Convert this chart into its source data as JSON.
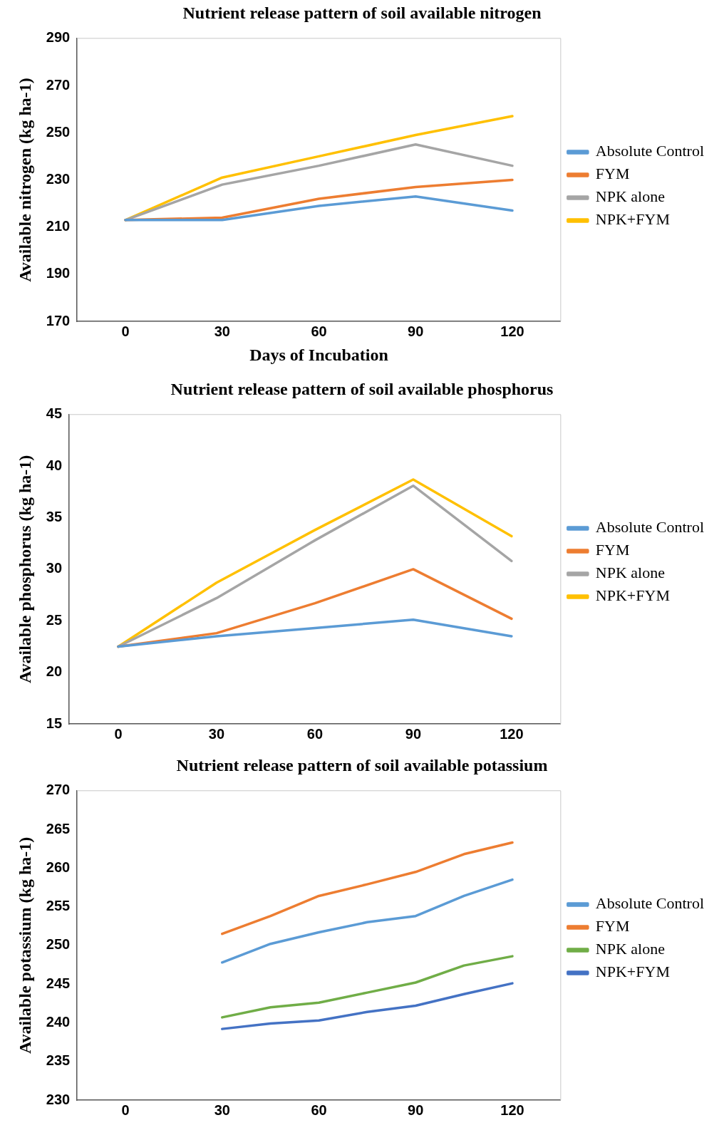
{
  "chart_data": [
    {
      "type": "line",
      "title": "Nutrient release pattern of soil available nitrogen",
      "xlabel": "Days of Incubation",
      "ylabel": "Available nitrogen (kg ha-1)",
      "x": [
        0,
        30,
        60,
        90,
        120
      ],
      "xlim": [
        -15,
        135
      ],
      "xticks": [
        0,
        30,
        60,
        90,
        120
      ],
      "ylim": [
        170,
        290
      ],
      "yticks": [
        170,
        190,
        210,
        230,
        250,
        270,
        290
      ],
      "grid": false,
      "legend": "right",
      "marker": "none",
      "series": [
        {
          "name": "Absolute Control",
          "color": "#5b9bd5",
          "values": [
            213,
            213,
            219,
            223,
            217
          ]
        },
        {
          "name": "FYM",
          "color": "#ed7d31",
          "values": [
            213,
            214,
            222,
            227,
            230
          ]
        },
        {
          "name": "NPK alone",
          "color": "#a5a5a5",
          "values": [
            213,
            228,
            236,
            245,
            236
          ]
        },
        {
          "name": "NPK+FYM",
          "color": "#ffc000",
          "values": [
            213,
            231,
            240,
            249,
            257
          ]
        }
      ]
    },
    {
      "type": "line",
      "title": "Nutrient release pattern of soil available phosphorus",
      "ylabel": "Available phosphorus (kg ha-1)",
      "x": [
        0,
        30,
        60,
        90,
        120
      ],
      "xlim": [
        -15,
        135
      ],
      "xticks": [
        0,
        30,
        60,
        90,
        120
      ],
      "ylim": [
        15,
        45
      ],
      "yticks": [
        15,
        20,
        25,
        30,
        35,
        40,
        45
      ],
      "grid": false,
      "legend": "right",
      "marker": "none",
      "series": [
        {
          "name": "Absolute Control",
          "color": "#5b9bd5",
          "values": [
            22.5,
            23.5,
            24.3,
            25.1,
            23.5
          ]
        },
        {
          "name": "FYM",
          "color": "#ed7d31",
          "values": [
            22.5,
            23.8,
            26.7,
            30.0,
            25.2
          ]
        },
        {
          "name": "NPK alone",
          "color": "#a5a5a5",
          "values": [
            22.5,
            27.2,
            32.8,
            38.1,
            30.8
          ]
        },
        {
          "name": "NPK+FYM",
          "color": "#ffc000",
          "values": [
            22.5,
            28.7,
            33.8,
            38.7,
            33.2
          ]
        }
      ]
    },
    {
      "type": "line",
      "title": "Nutrient release pattern of soil available potassium",
      "ylabel": "Available potassium (kg ha-1)",
      "x": [
        30,
        45,
        60,
        75,
        90,
        105,
        120
      ],
      "xlim": [
        -15,
        135
      ],
      "xticks": [
        0,
        30,
        60,
        90,
        120
      ],
      "ylim": [
        230,
        270
      ],
      "yticks": [
        230,
        235,
        240,
        245,
        250,
        255,
        260,
        265,
        270
      ],
      "grid": false,
      "legend": "right",
      "marker": "none",
      "series": [
        {
          "name": "Absolute Control",
          "color": "#5b9bd5",
          "values": [
            247.8,
            250.2,
            251.7,
            253.0,
            253.8,
            256.4,
            258.5
          ]
        },
        {
          "name": "FYM",
          "color": "#ed7d31",
          "values": [
            251.5,
            253.8,
            256.4,
            257.9,
            259.5,
            261.8,
            263.3
          ]
        },
        {
          "name": "NPK alone",
          "color": "#70ad47",
          "values": [
            240.7,
            242.0,
            242.6,
            243.9,
            245.2,
            247.4,
            248.6
          ]
        },
        {
          "name": "NPK+FYM",
          "color": "#4472c4",
          "values": [
            239.2,
            239.9,
            240.3,
            241.4,
            242.2,
            243.7,
            245.1
          ]
        }
      ]
    }
  ]
}
